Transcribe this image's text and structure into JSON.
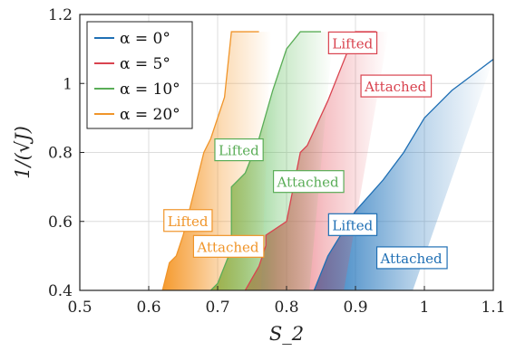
{
  "chart_data": {
    "type": "area",
    "xlabel": "S_2",
    "ylabel": "1/(√J)",
    "xlim": [
      0.5,
      1.1
    ],
    "ylim": [
      0.4,
      1.2
    ],
    "xticks": [
      "0.5",
      "0.6",
      "0.7",
      "0.8",
      "0.9",
      "1",
      "1.1"
    ],
    "yticks": [
      "0.4",
      "0.6",
      "0.8",
      "1",
      "1.2"
    ],
    "grid": true,
    "legend_position": "top-left",
    "series": [
      {
        "name": "α = 0°",
        "color": "#1f6fb4",
        "fill": "#2c7bbf",
        "boundary": [
          [
            0.84,
            0.4
          ],
          [
            0.86,
            0.5
          ],
          [
            0.9,
            0.63
          ],
          [
            0.94,
            0.72
          ],
          [
            0.97,
            0.8
          ],
          [
            1.0,
            0.9
          ],
          [
            1.04,
            0.98
          ],
          [
            1.08,
            1.04
          ],
          [
            1.1,
            1.07
          ]
        ]
      },
      {
        "name": "α = 5°",
        "color": "#d9434f",
        "fill": "#e34d58",
        "boundary": [
          [
            0.74,
            0.4
          ],
          [
            0.76,
            0.47
          ],
          [
            0.77,
            0.53
          ],
          [
            0.77,
            0.56
          ],
          [
            0.8,
            0.6
          ],
          [
            0.82,
            0.8
          ],
          [
            0.83,
            0.82
          ],
          [
            0.86,
            0.95
          ],
          [
            0.88,
            1.05
          ],
          [
            0.9,
            1.15
          ],
          [
            0.93,
            1.15
          ]
        ]
      },
      {
        "name": "α = 10°",
        "color": "#5aad57",
        "fill": "#5ebd5a",
        "boundary": [
          [
            0.69,
            0.4
          ],
          [
            0.7,
            0.42
          ],
          [
            0.72,
            0.52
          ],
          [
            0.72,
            0.7
          ],
          [
            0.74,
            0.74
          ],
          [
            0.76,
            0.84
          ],
          [
            0.78,
            0.98
          ],
          [
            0.8,
            1.1
          ],
          [
            0.82,
            1.15
          ],
          [
            0.85,
            1.15
          ]
        ]
      },
      {
        "name": "α = 20°",
        "color": "#f0952a",
        "fill": "#f59a2e",
        "boundary": [
          [
            0.62,
            0.4
          ],
          [
            0.63,
            0.48
          ],
          [
            0.64,
            0.5
          ],
          [
            0.65,
            0.56
          ],
          [
            0.67,
            0.72
          ],
          [
            0.68,
            0.8
          ],
          [
            0.69,
            0.84
          ],
          [
            0.71,
            0.96
          ],
          [
            0.72,
            1.15
          ],
          [
            0.76,
            1.15
          ]
        ]
      }
    ],
    "annotations": [
      {
        "text": "Lifted",
        "series": 3,
        "x": 0.622,
        "y": 0.6
      },
      {
        "text": "Attached",
        "series": 3,
        "x": 0.665,
        "y": 0.525
      },
      {
        "text": "Lifted",
        "series": 2,
        "x": 0.696,
        "y": 0.805
      },
      {
        "text": "Attached",
        "series": 2,
        "x": 0.781,
        "y": 0.713
      },
      {
        "text": "Lifted",
        "series": 1,
        "x": 0.861,
        "y": 1.115
      },
      {
        "text": "Attached",
        "series": 1,
        "x": 0.908,
        "y": 0.99
      },
      {
        "text": "Lifted",
        "series": 0,
        "x": 0.861,
        "y": 0.588
      },
      {
        "text": "Attached",
        "series": 0,
        "x": 0.931,
        "y": 0.492
      }
    ]
  }
}
